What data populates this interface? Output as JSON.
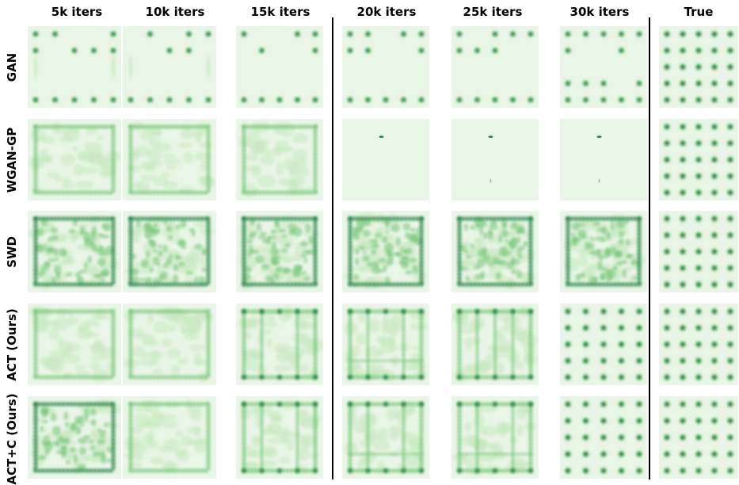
{
  "columns": [
    "5k iters",
    "10k iters",
    "15k iters",
    "20k iters",
    "25k iters",
    "30k iters",
    "True"
  ],
  "rows": [
    "GAN",
    "WGAN-GP",
    "SWD",
    "ACT (Ours)",
    "ACT+C (Ours)"
  ],
  "colors": {
    "background": "#e9f5e6",
    "density_light": "#c7e9c0",
    "density_mid": "#74c476",
    "density_dark": "#1b7a3c",
    "divider": "#000000"
  },
  "panels": [
    [
      "modes-partial",
      "modes-partial",
      "modes-partial",
      "modes-partial",
      "modes-partial",
      "modes-partial",
      "grid-5x5"
    ],
    [
      "ring-diffuse",
      "ring-diffuse",
      "ring-diffuse",
      "collapsed",
      "collapsed",
      "collapsed",
      "grid-5x5"
    ],
    [
      "ring-dense",
      "ring-dense",
      "ring-dense",
      "ring-dense",
      "ring-dense",
      "ring-dense",
      "grid-5x5"
    ],
    [
      "ring-diffuse",
      "ring-diffuse",
      "ring-lines",
      "ring-lines",
      "lines-vertical",
      "grid-5x5",
      "grid-5x5"
    ],
    [
      "ring-dense",
      "ring-diffuse",
      "ring-lines",
      "ring-lines",
      "ring-lines",
      "grid-5x5",
      "grid-5x5"
    ]
  ]
}
